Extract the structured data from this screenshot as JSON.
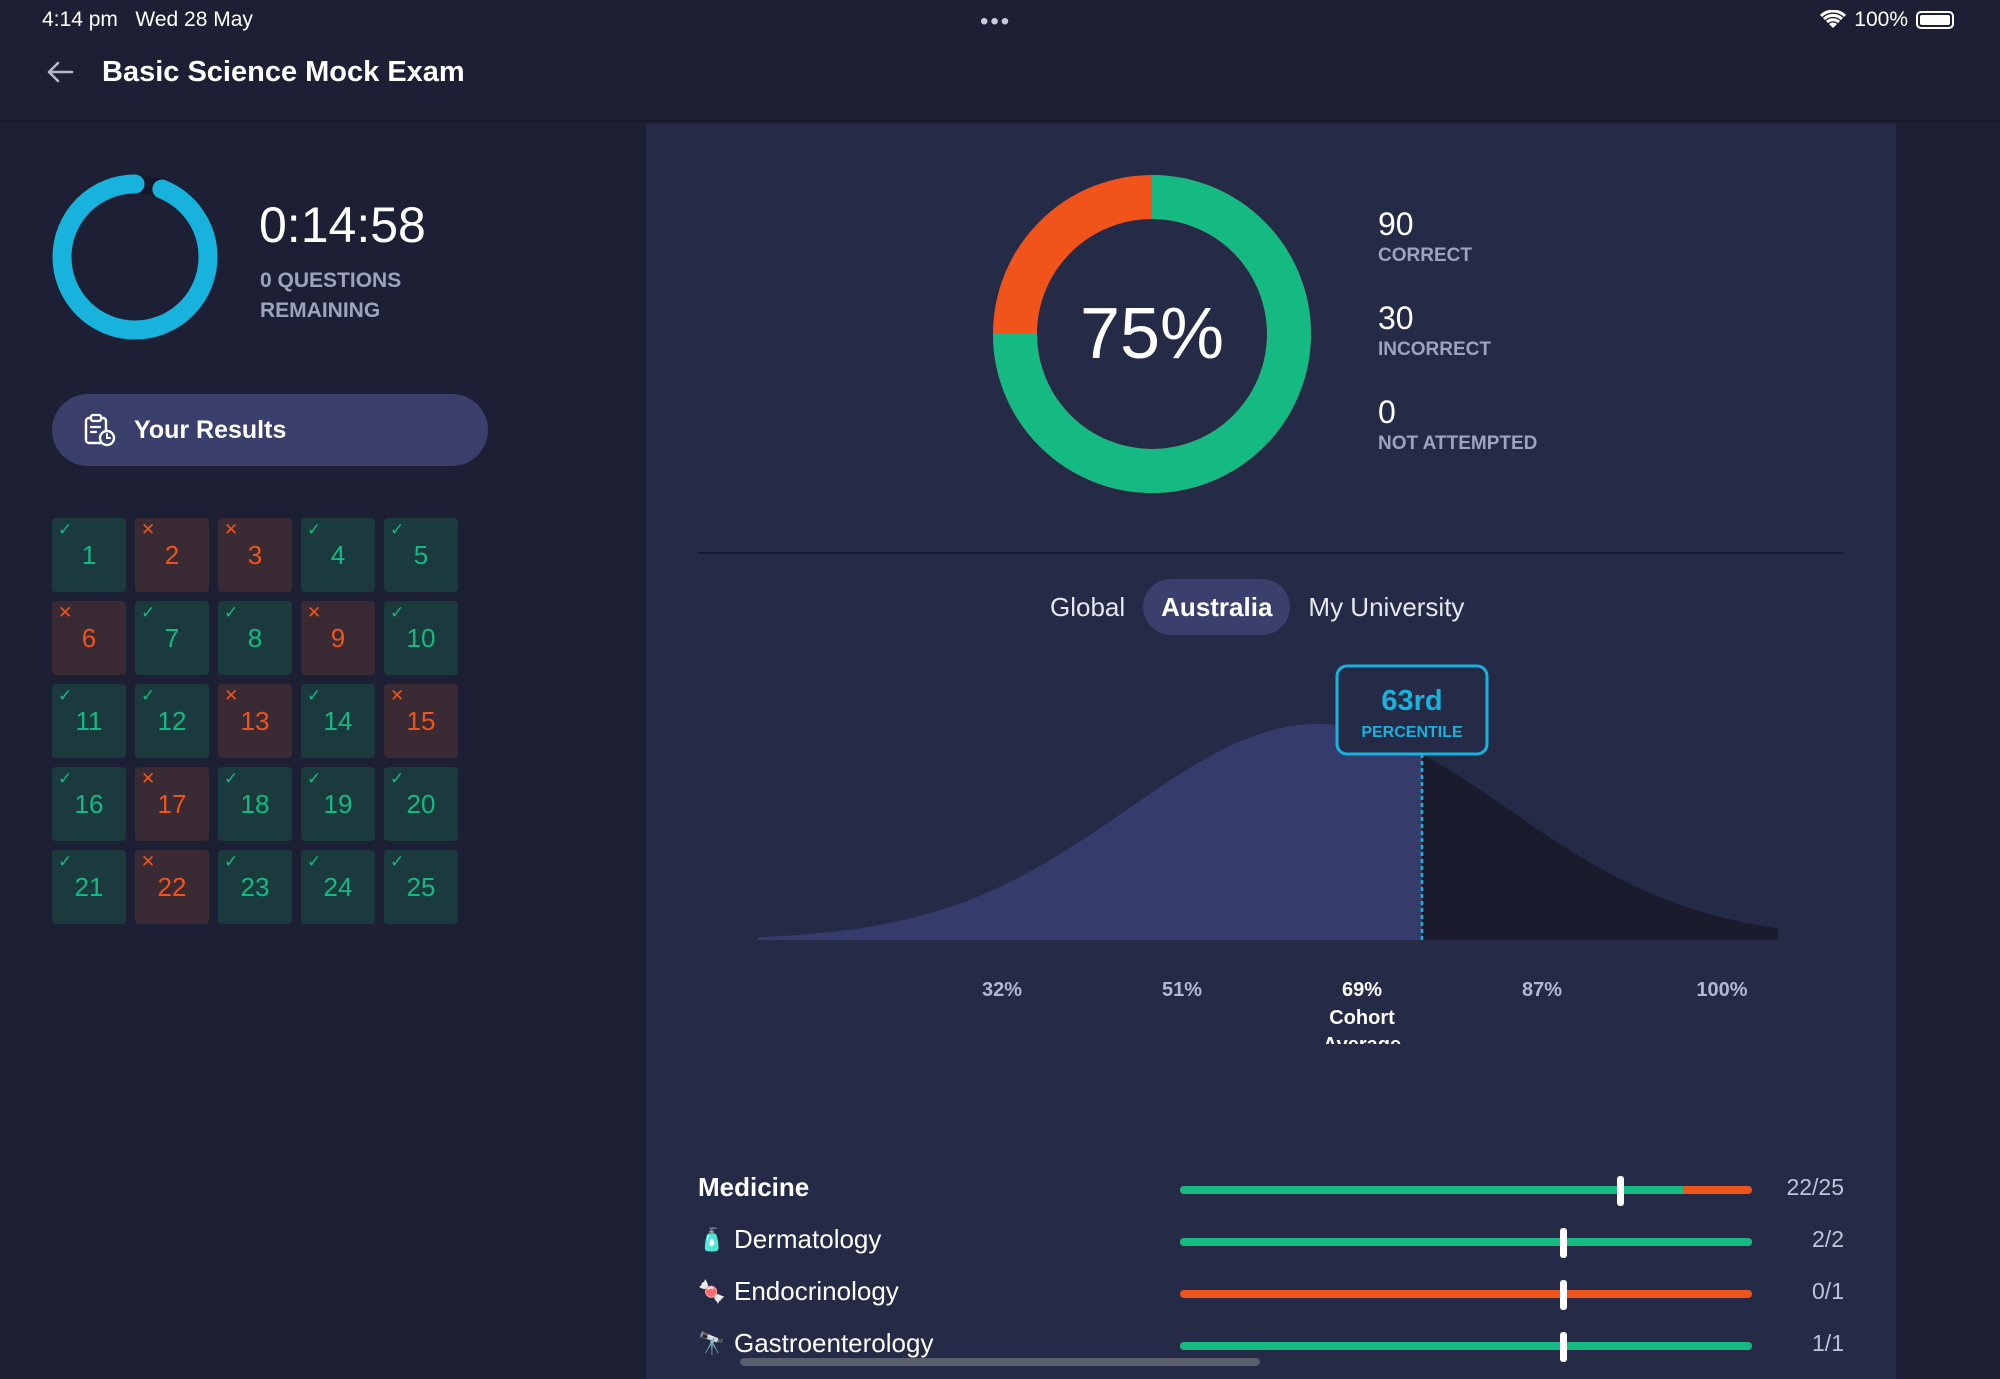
{
  "status": {
    "time": "4:14 pm",
    "date": "Wed 28 May",
    "battery": "100%"
  },
  "header": {
    "title": "Basic Science Mock Exam"
  },
  "timer": {
    "value": "0:14:58",
    "subtitle": "0 QUESTIONS REMAINING",
    "progress": 0.94
  },
  "results_button": {
    "label": "Your Results"
  },
  "questions": [
    {
      "n": "1",
      "result": "correct"
    },
    {
      "n": "2",
      "result": "wrong"
    },
    {
      "n": "3",
      "result": "wrong"
    },
    {
      "n": "4",
      "result": "correct"
    },
    {
      "n": "5",
      "result": "correct"
    },
    {
      "n": "6",
      "result": "wrong"
    },
    {
      "n": "7",
      "result": "correct"
    },
    {
      "n": "8",
      "result": "correct"
    },
    {
      "n": "9",
      "result": "wrong"
    },
    {
      "n": "10",
      "result": "correct"
    },
    {
      "n": "11",
      "result": "correct"
    },
    {
      "n": "12",
      "result": "correct"
    },
    {
      "n": "13",
      "result": "wrong"
    },
    {
      "n": "14",
      "result": "correct"
    },
    {
      "n": "15",
      "result": "wrong"
    },
    {
      "n": "16",
      "result": "correct"
    },
    {
      "n": "17",
      "result": "wrong"
    },
    {
      "n": "18",
      "result": "correct"
    },
    {
      "n": "19",
      "result": "correct"
    },
    {
      "n": "20",
      "result": "correct"
    },
    {
      "n": "21",
      "result": "correct"
    },
    {
      "n": "22",
      "result": "wrong"
    },
    {
      "n": "23",
      "result": "correct"
    },
    {
      "n": "24",
      "result": "correct"
    },
    {
      "n": "25",
      "result": "correct"
    }
  ],
  "score": {
    "percent_label": "75%",
    "correct": 90,
    "incorrect": 30,
    "not_attempted": 0,
    "correct_num": "90",
    "correct_label": "CORRECT",
    "incorrect_num": "30",
    "incorrect_label": "INCORRECT",
    "not_attempted_num": "0",
    "not_attempted_label": "NOT ATTEMPTED"
  },
  "cohort_tabs": [
    {
      "label": "Global",
      "active": false
    },
    {
      "label": "Australia",
      "active": true
    },
    {
      "label": "My University",
      "active": false
    }
  ],
  "distribution": {
    "percentile_value": "63rd",
    "percentile_label": "PERCENTILE",
    "ticks": [
      "32%",
      "51%",
      "69%",
      "87%",
      "100%"
    ],
    "cohort_average_tick": "69%",
    "cohort_average_label": "Cohort Average",
    "user_score": 75
  },
  "categories": [
    {
      "name": "Medicine",
      "header": true,
      "icon": "",
      "score": "22/25",
      "correct_fraction": 0.88,
      "average_fraction": 0.77
    },
    {
      "name": "Dermatology",
      "header": false,
      "icon": "lotion-bottle-icon",
      "glyph": "🧴",
      "score": "2/2",
      "correct_fraction": 1.0,
      "average_fraction": 0.67
    },
    {
      "name": "Endocrinology",
      "header": false,
      "icon": "candy-icon",
      "glyph": "🍬",
      "score": "0/1",
      "correct_fraction": 0.0,
      "average_fraction": 0.67
    },
    {
      "name": "Gastroenterology",
      "header": false,
      "icon": "telescope-icon",
      "glyph": "🔭",
      "score": "1/1",
      "correct_fraction": 1.0,
      "average_fraction": 0.67
    }
  ],
  "colors": {
    "correct": "#15b982",
    "incorrect": "#f0541b",
    "accent": "#17b3dd",
    "panel": "#252a46"
  }
}
